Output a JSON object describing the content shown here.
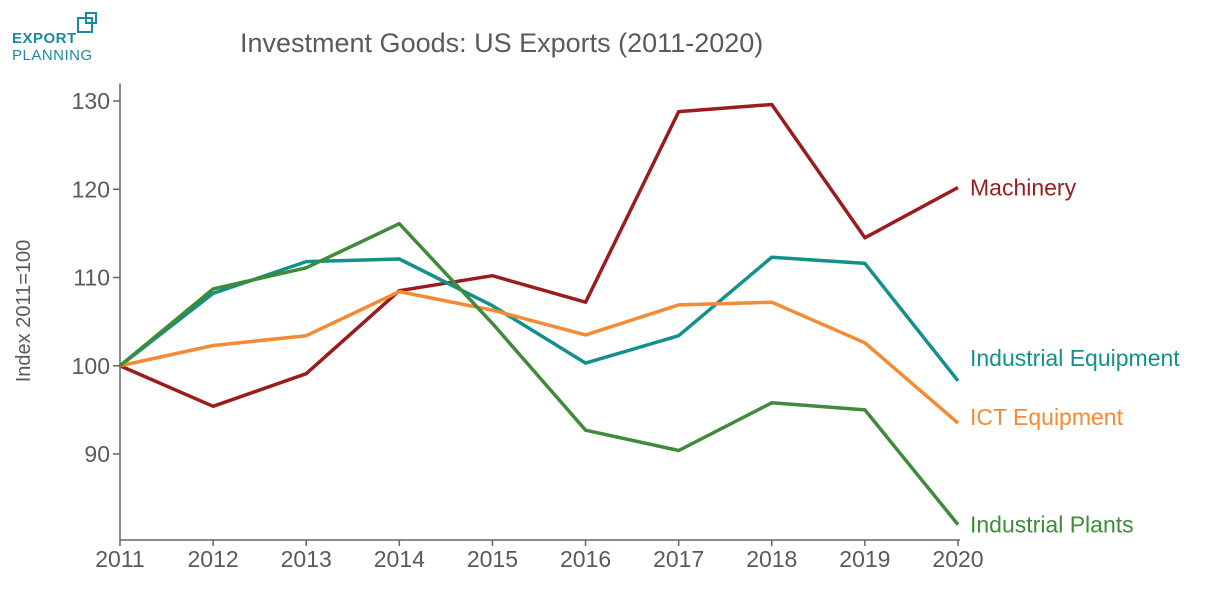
{
  "logo": {
    "word1": "EXPORT",
    "word2": "PLANNING",
    "color": "#1a8aa0"
  },
  "chart_data": {
    "type": "line",
    "title": "Investment Goods: US Exports (2011-2020)",
    "xlabel": "",
    "ylabel": "Index 2011=100",
    "x": [
      2011,
      2012,
      2013,
      2014,
      2015,
      2016,
      2017,
      2018,
      2019,
      2020
    ],
    "x_ticks": [
      "2011",
      "2012",
      "2013",
      "2014",
      "2015",
      "2016",
      "2017",
      "2018",
      "2019",
      "2020"
    ],
    "y_ticks": [
      90,
      100,
      110,
      120,
      130
    ],
    "ylim": [
      81,
      132
    ],
    "grid": false,
    "legend": "direct labels at right end of lines",
    "series": [
      {
        "name": "Machinery",
        "color": "#9b1c1f",
        "values": [
          100,
          95.4,
          99.1,
          108.5,
          110.2,
          107.2,
          128.8,
          129.6,
          114.5,
          120.2
        ]
      },
      {
        "name": "Industrial Equipment",
        "color": "#119189",
        "values": [
          100,
          108.2,
          111.8,
          112.1,
          106.8,
          100.3,
          103.4,
          112.3,
          111.6,
          98.3
        ]
      },
      {
        "name": "ICT Equipment",
        "color": "#f48a33",
        "values": [
          100,
          102.3,
          103.4,
          108.4,
          106.3,
          103.5,
          106.9,
          107.2,
          102.6,
          93.5
        ]
      },
      {
        "name": "Industrial Plants",
        "color": "#3f8b3a",
        "values": [
          100,
          108.7,
          111.1,
          116.1,
          104.8,
          92.7,
          90.4,
          95.8,
          95.0,
          82.0
        ]
      }
    ]
  }
}
